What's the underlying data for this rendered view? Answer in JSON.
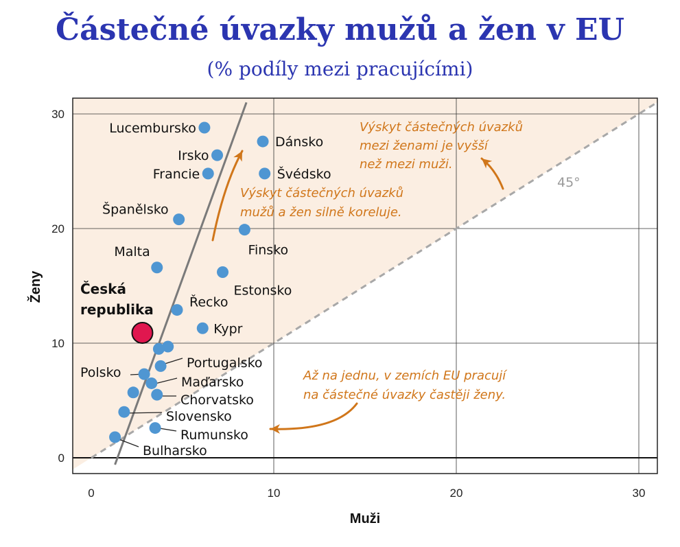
{
  "title": "Částečné úvazky mužů a žen v EU",
  "subtitle": "(% podíly mezi pracujícími)",
  "colors": {
    "title": "#2b35b0",
    "point": "#4f96d2",
    "highlight": "#e0174f",
    "annotation": "#d0761a",
    "shade": "#fbeee2",
    "trend": "#7a7a7a",
    "diagonal": "#a8a8a8"
  },
  "chart_data": {
    "type": "scatter",
    "xlabel": "Muži",
    "ylabel": "Ženy",
    "xlim": [
      -1,
      31
    ],
    "ylim": [
      -1,
      31
    ],
    "xticks": [
      0,
      10,
      20,
      30
    ],
    "yticks": [
      0,
      10,
      20,
      30
    ],
    "grid": true,
    "points": [
      {
        "country": "Lucembursko",
        "x": 6.2,
        "y": 28.8
      },
      {
        "country": "Dánsko",
        "x": 9.4,
        "y": 27.6
      },
      {
        "country": "Irsko",
        "x": 6.9,
        "y": 26.4
      },
      {
        "country": "Francie",
        "x": 6.4,
        "y": 24.8
      },
      {
        "country": "Švédsko",
        "x": 9.5,
        "y": 24.8
      },
      {
        "country": "Španělsko",
        "x": 4.8,
        "y": 20.8
      },
      {
        "country": "Finsko",
        "x": 8.4,
        "y": 19.9
      },
      {
        "country": "Malta",
        "x": 3.6,
        "y": 16.6
      },
      {
        "country": "Estonsko",
        "x": 7.2,
        "y": 16.2
      },
      {
        "country": "Řecko",
        "x": 4.7,
        "y": 12.9
      },
      {
        "country": "Kypr",
        "x": 6.1,
        "y": 11.3
      },
      {
        "country": "Česká republika",
        "x": 2.8,
        "y": 10.9,
        "highlight": true
      },
      {
        "country": "Portugalsko",
        "x": 3.8,
        "y": 8.0
      },
      {
        "country": "Polsko",
        "x": 2.9,
        "y": 7.3
      },
      {
        "country": "Maďarsko",
        "x": 3.3,
        "y": 6.5
      },
      {
        "country": "Chorvatsko",
        "x": 3.6,
        "y": 5.5
      },
      {
        "country": "Slovensko",
        "x": 1.8,
        "y": 4.0
      },
      {
        "country": "Rumunsko",
        "x": 3.5,
        "y": 2.6
      },
      {
        "country": "Bulharsko",
        "x": 1.3,
        "y": 1.8
      },
      {
        "country": "",
        "x": 4.2,
        "y": 9.7
      },
      {
        "country": "",
        "x": 3.7,
        "y": 9.5
      },
      {
        "country": "",
        "x": 2.3,
        "y": 5.7
      }
    ],
    "highlight_label": [
      "Česká",
      "republika"
    ],
    "trend_line": [
      [
        1.3,
        -0.6
      ],
      [
        8.5,
        31.0
      ]
    ],
    "reference_line": {
      "label": "45°",
      "from": [
        0,
        0
      ],
      "to": [
        31,
        31
      ]
    },
    "annotations": [
      {
        "lines": [
          "Výskyt částečných úvazků",
          "mezi ženami je vyšší",
          "než mezi muži."
        ]
      },
      {
        "lines": [
          "Výskyt částečných úvazků",
          "mužů a žen silně koreluje."
        ]
      },
      {
        "lines": [
          "Až na jednu, v zemích EU pracují",
          "na částečné úvazky častěji ženy."
        ]
      }
    ]
  }
}
